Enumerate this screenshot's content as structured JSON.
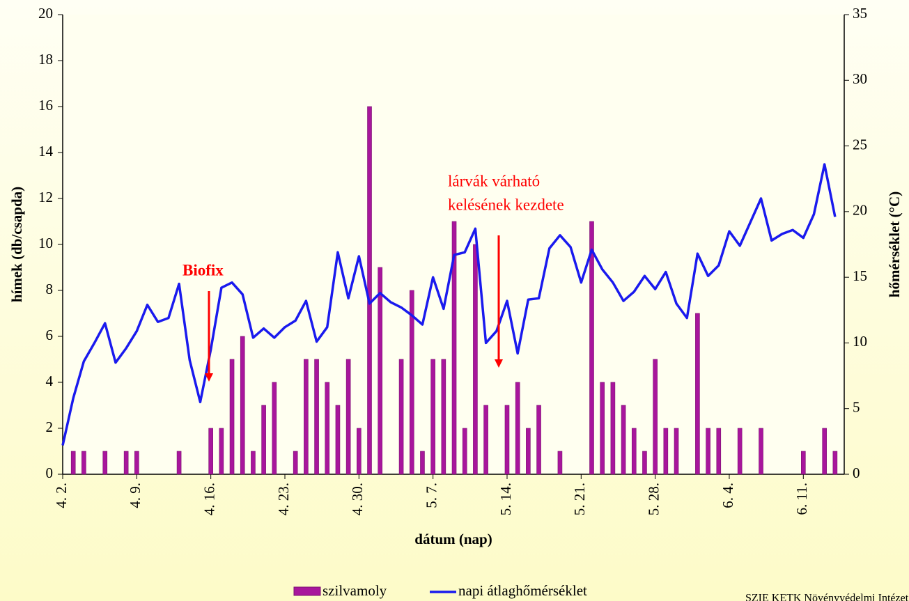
{
  "chart_data": {
    "type": "bar",
    "y_label": "hímek  (db/csapda)",
    "y2_label": "hőmérséklet (°C)",
    "x_label": "dátum (nap)",
    "source": "SZIE KETK Növényvédelmi Intézet",
    "annotations": [
      {
        "text": [
          "Biofix"
        ],
        "at": 14
      },
      {
        "text": [
          "lárvák  várható",
          "kelésének kezdete"
        ],
        "at": 41
      }
    ],
    "categories": [
      "4. 2.",
      null,
      null,
      null,
      null,
      null,
      null,
      "4. 9.",
      null,
      null,
      null,
      null,
      null,
      null,
      "4. 16.",
      null,
      null,
      null,
      null,
      null,
      null,
      "4. 23.",
      null,
      null,
      null,
      null,
      null,
      null,
      "4. 30.",
      null,
      null,
      null,
      null,
      null,
      null,
      "5. 7.",
      null,
      null,
      null,
      null,
      null,
      null,
      "5. 14.",
      null,
      null,
      null,
      null,
      null,
      null,
      "5. 21.",
      null,
      null,
      null,
      null,
      null,
      null,
      "5. 28.",
      null,
      null,
      null,
      null,
      null,
      null,
      "6. 4.",
      null,
      null,
      null,
      null,
      null,
      null,
      "6. 11.",
      null,
      null,
      null
    ],
    "series": [
      {
        "name": "szilvamoly",
        "type": "bar",
        "color": "#a8169c",
        "values": [
          0,
          1,
          1,
          0,
          1,
          0,
          1,
          1,
          0,
          0,
          0,
          1,
          0,
          0,
          2,
          2,
          5,
          6,
          1,
          3,
          4,
          0,
          1,
          5,
          5,
          4,
          3,
          5,
          2,
          16,
          9,
          0,
          5,
          8,
          1,
          5,
          5,
          11,
          2,
          10,
          3,
          0,
          3,
          4,
          2,
          3,
          0,
          1,
          0,
          0,
          11,
          4,
          4,
          3,
          2,
          1,
          5,
          2,
          2,
          0,
          7,
          2,
          2,
          0,
          2,
          0,
          2,
          0,
          0,
          0,
          1,
          0,
          2,
          1
        ]
      },
      {
        "name": "napi átlaghőmérséklet",
        "type": "line",
        "axis": "y2",
        "color": "#1a1aee",
        "values": [
          2.2,
          5.8,
          8.6,
          10.0,
          11.5,
          8.5,
          9.6,
          10.9,
          12.9,
          11.6,
          11.9,
          14.5,
          8.7,
          5.5,
          9.5,
          14.2,
          14.6,
          13.7,
          10.4,
          11.1,
          10.4,
          11.2,
          11.7,
          13.2,
          10.1,
          11.2,
          16.9,
          13.4,
          16.6,
          13.0,
          13.8,
          13.1,
          12.7,
          12.1,
          11.4,
          15.0,
          12.6,
          16.7,
          16.9,
          18.7,
          10.0,
          10.9,
          13.2,
          9.2,
          13.3,
          13.4,
          17.2,
          18.2,
          17.3,
          14.6,
          17.1,
          15.6,
          14.6,
          13.2,
          13.9,
          15.1,
          14.1,
          15.4,
          13.0,
          11.9,
          16.8,
          15.1,
          15.9,
          18.5,
          17.4,
          19.2,
          21.0,
          17.8,
          18.3,
          18.6,
          18.0,
          19.8,
          23.6,
          19.6
        ]
      }
    ],
    "ylim": [
      0,
      20
    ],
    "yticks": [
      0,
      2,
      4,
      6,
      8,
      10,
      12,
      14,
      16,
      18,
      20
    ],
    "y2lim": [
      0,
      35
    ],
    "y2ticks": [
      0,
      5,
      10,
      15,
      20,
      25,
      30,
      35
    ],
    "annotation_color": "#ff0000"
  }
}
